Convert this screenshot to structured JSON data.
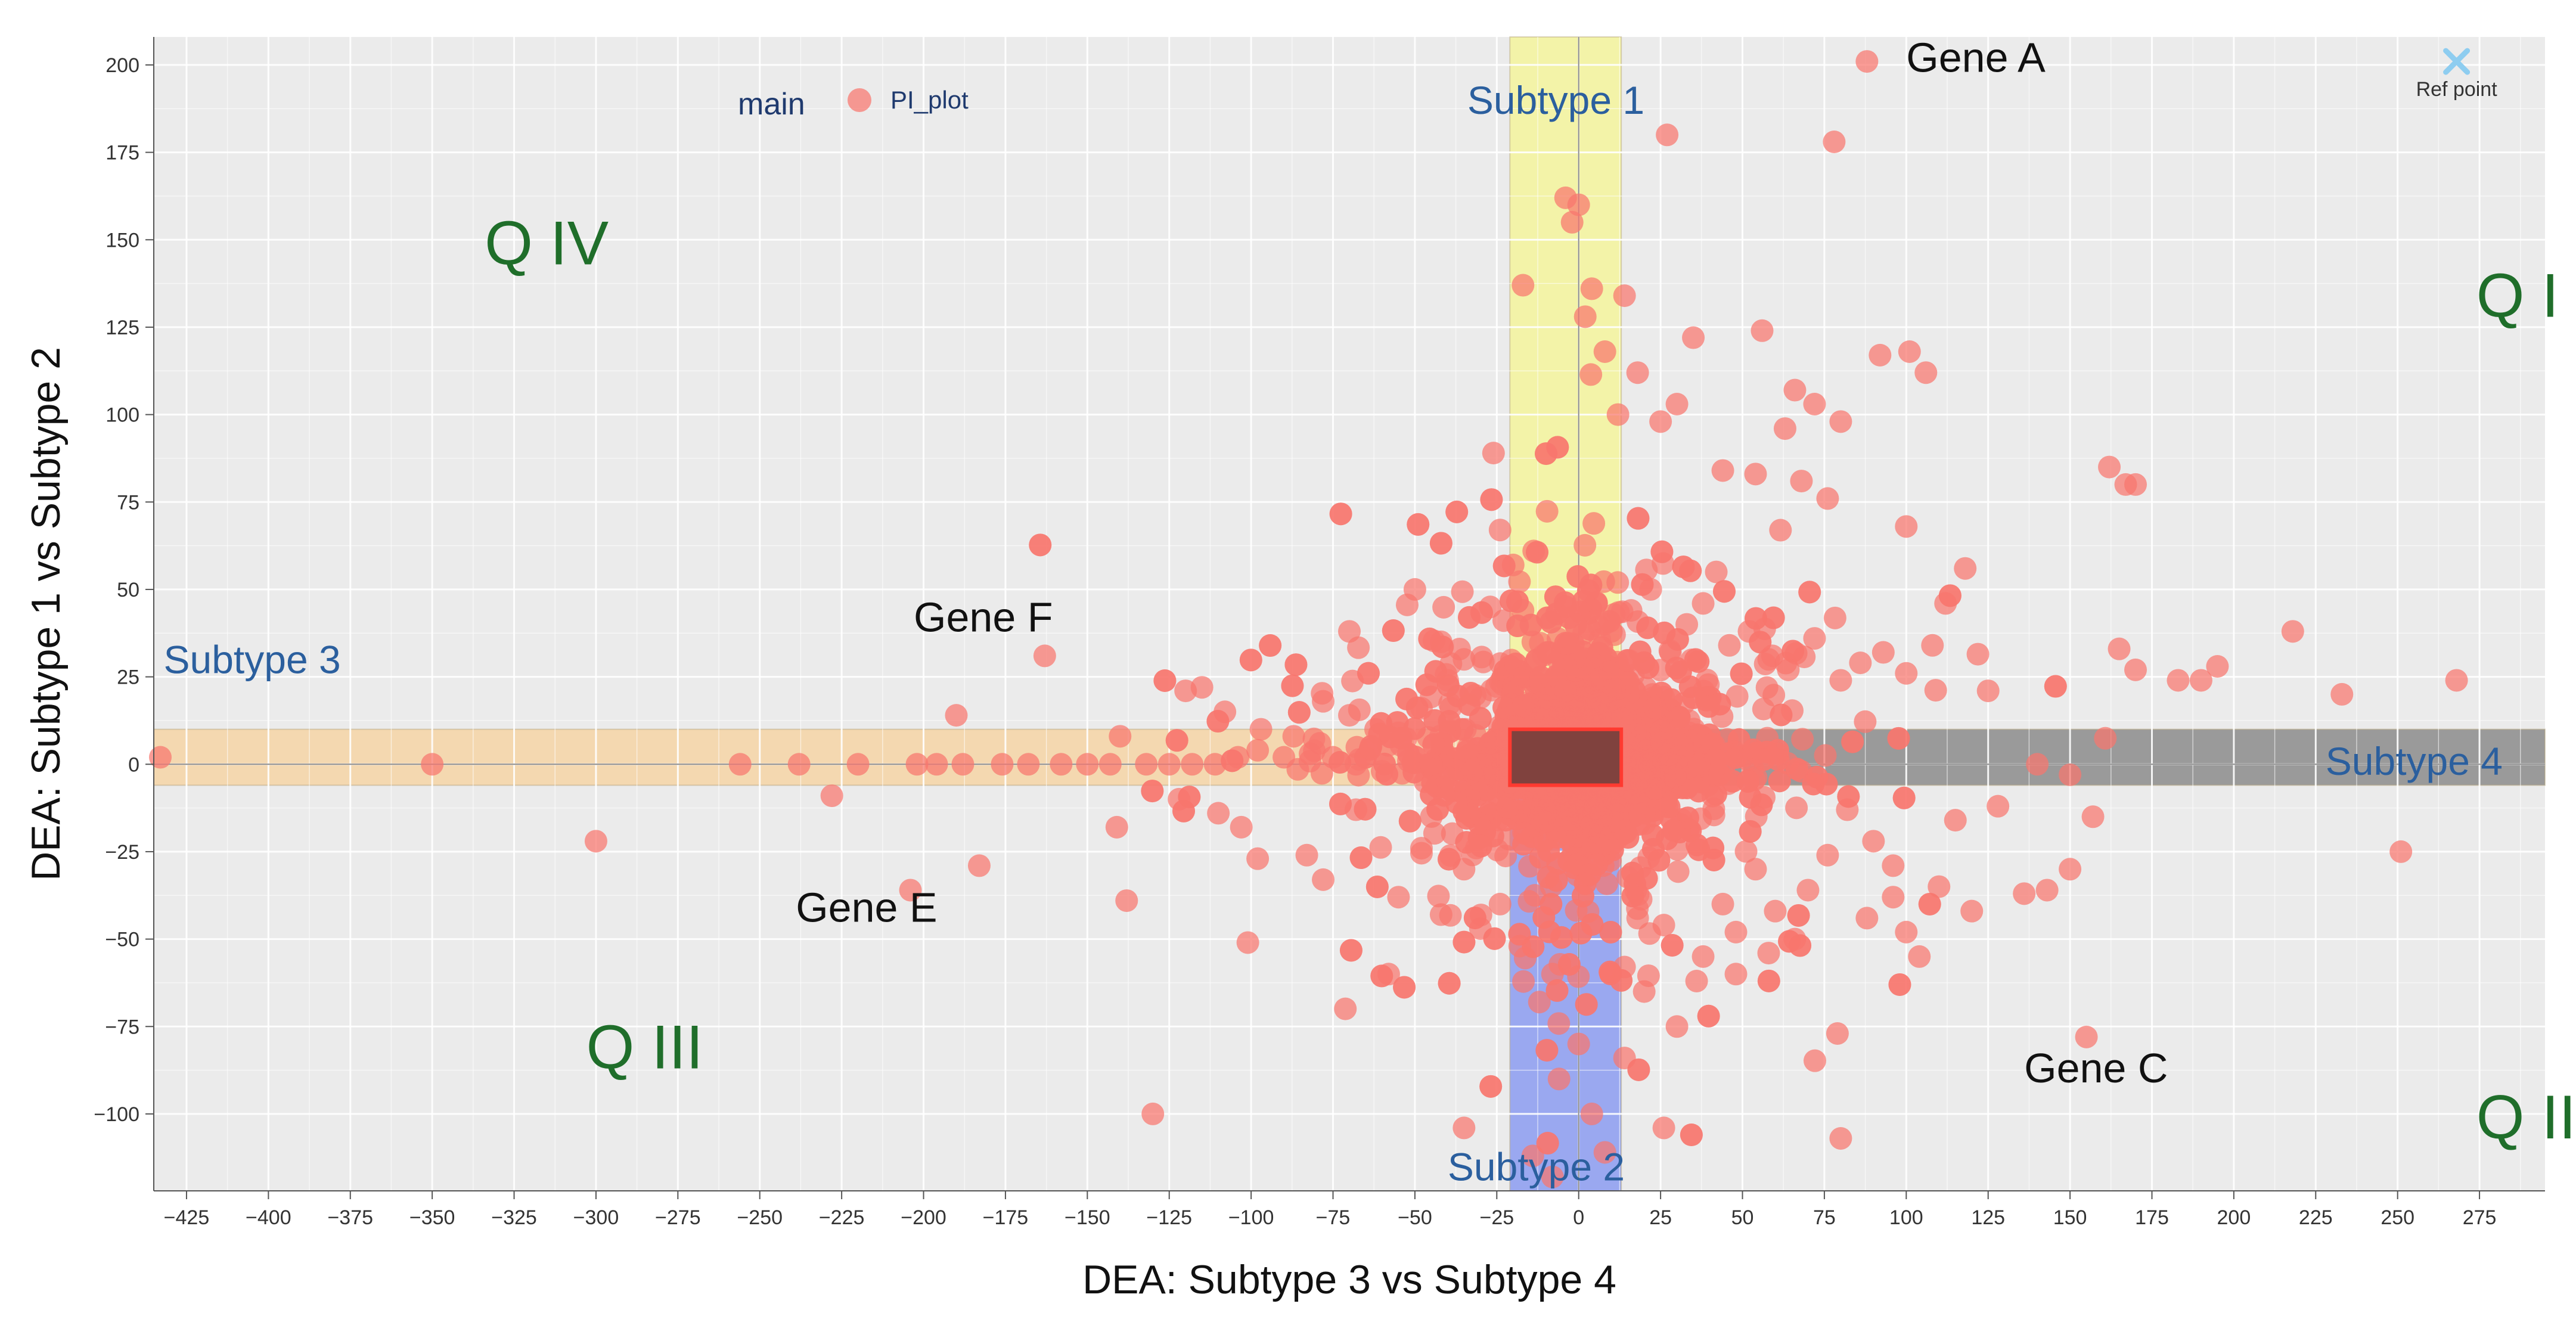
{
  "chart_data": {
    "type": "scatter",
    "title": "",
    "xlabel": "DEA: Subtype 3 vs Subtype 4",
    "ylabel": "DEA: Subtype 1 vs Subtype 2",
    "xlim": [
      -435,
      295
    ],
    "ylim": [
      -122,
      208
    ],
    "xticks": [
      -425,
      -400,
      -375,
      -350,
      -325,
      -300,
      -275,
      -250,
      -225,
      -200,
      -175,
      -150,
      -125,
      -100,
      -75,
      -50,
      -25,
      0,
      25,
      50,
      75,
      100,
      125,
      150,
      175,
      200,
      225,
      250,
      275
    ],
    "yticks": [
      -100,
      -75,
      -50,
      -25,
      0,
      25,
      50,
      75,
      100,
      125,
      150,
      175,
      200
    ],
    "grid": true,
    "legend": {
      "title": "main",
      "placement": "top-left",
      "entries": [
        {
          "label": "PI_plot",
          "color": "#f8766d"
        }
      ]
    },
    "colors": {
      "points": "#f8766d",
      "plot_background": "#ebebeb",
      "subtype1_band": "#f3f3a8",
      "subtype2_band": "#9aa8f0",
      "subtype3_band": "#f4d8b0",
      "subtype4_band": "#9a9a9a",
      "center_box": "#6b3a36",
      "ref_marker": "#8ecdf0"
    },
    "regions": [
      {
        "id": "subtype1",
        "label": "Subtype 1",
        "x": [
          -21,
          13
        ],
        "y": [
          10,
          208
        ]
      },
      {
        "id": "subtype2",
        "label": "Subtype 2",
        "x": [
          -21,
          13
        ],
        "y": [
          -122,
          -6
        ]
      },
      {
        "id": "subtype3",
        "label": "Subtype 3",
        "x": [
          -435,
          -21
        ],
        "y": [
          -6,
          10
        ]
      },
      {
        "id": "subtype4",
        "label": "Subtype 4",
        "x": [
          13,
          295
        ],
        "y": [
          -6,
          10
        ]
      },
      {
        "id": "center",
        "label": "",
        "x": [
          -21,
          13
        ],
        "y": [
          -6,
          10
        ]
      }
    ],
    "quadrant_labels": [
      {
        "label": "Q I",
        "x": 274,
        "y": 128
      },
      {
        "label": "Q II",
        "x": 274,
        "y": -107
      },
      {
        "label": "Q III",
        "x": -303,
        "y": -87
      },
      {
        "label": "Q IV",
        "x": -334,
        "y": 143
      }
    ],
    "region_labels": [
      {
        "label": "Subtype 1",
        "x": -34,
        "y": 186
      },
      {
        "label": "Subtype 2",
        "x": -40,
        "y": -119
      },
      {
        "label": "Subtype 3",
        "x": -432,
        "y": 26
      },
      {
        "label": "Subtype 4",
        "x": 228,
        "y": -3
      }
    ],
    "gene_labels": [
      {
        "label": "Gene A",
        "x": 100,
        "y": 198
      },
      {
        "label": "Gene C",
        "x": 136,
        "y": -91
      },
      {
        "label": "Gene E",
        "x": -239,
        "y": -45
      },
      {
        "label": "Gene F",
        "x": -203,
        "y": 38
      }
    ],
    "reference_point": {
      "label": "Ref point",
      "x": 268,
      "y": 201
    },
    "series": [
      {
        "name": "PI_plot",
        "points": [
          [
            88,
            201
          ],
          [
            27,
            180
          ],
          [
            78,
            178
          ],
          [
            0,
            160
          ],
          [
            -2,
            155
          ],
          [
            -17,
            137
          ],
          [
            4,
            136
          ],
          [
            14,
            134
          ],
          [
            35,
            122
          ],
          [
            56,
            124
          ],
          [
            92,
            117
          ],
          [
            101,
            118
          ],
          [
            106,
            112
          ],
          [
            66,
            107
          ],
          [
            72,
            103
          ],
          [
            80,
            98
          ],
          [
            44,
            84
          ],
          [
            54,
            83
          ],
          [
            63,
            96
          ],
          [
            68,
            81
          ],
          [
            76,
            76
          ],
          [
            100,
            68
          ],
          [
            162,
            85
          ],
          [
            167,
            80
          ],
          [
            170,
            80
          ],
          [
            12,
            100
          ],
          [
            25,
            98
          ],
          [
            -4,
            162
          ],
          [
            2,
            128
          ],
          [
            8,
            118
          ],
          [
            18,
            112
          ],
          [
            30,
            103
          ],
          [
            -26,
            89
          ],
          [
            -24,
            67
          ],
          [
            -20,
            57
          ],
          [
            -17,
            44
          ],
          [
            -27,
            45
          ],
          [
            -14,
            35
          ],
          [
            -9,
            32
          ],
          [
            -5,
            27
          ],
          [
            10,
            38
          ],
          [
            16,
            44
          ],
          [
            22,
            50
          ],
          [
            33,
            40
          ],
          [
            38,
            46
          ],
          [
            42,
            55
          ],
          [
            28,
            32
          ],
          [
            46,
            34
          ],
          [
            52,
            38
          ],
          [
            58,
            30
          ],
          [
            64,
            27
          ],
          [
            72,
            36
          ],
          [
            80,
            24
          ],
          [
            86,
            29
          ],
          [
            93,
            32
          ],
          [
            100,
            26
          ],
          [
            108,
            34
          ],
          [
            112,
            46
          ],
          [
            118,
            56
          ],
          [
            125,
            21
          ],
          [
            140,
            0
          ],
          [
            150,
            -3
          ],
          [
            165,
            33
          ],
          [
            170,
            27
          ],
          [
            183,
            24
          ],
          [
            190,
            24
          ],
          [
            195,
            28
          ],
          [
            218,
            38
          ],
          [
            233,
            20
          ],
          [
            268,
            24
          ],
          [
            -163,
            31
          ],
          [
            -190,
            14
          ],
          [
            -140,
            8
          ],
          [
            -120,
            21
          ],
          [
            -115,
            22
          ],
          [
            -108,
            15
          ],
          [
            -97,
            10
          ],
          [
            -87,
            8
          ],
          [
            -78,
            18
          ],
          [
            -70,
            14
          ],
          [
            -62,
            10
          ],
          [
            -55,
            9
          ],
          [
            -48,
            16
          ],
          [
            -40,
            24
          ],
          [
            -35,
            30
          ],
          [
            -30,
            19
          ],
          [
            -70,
            38
          ],
          [
            -42,
            35
          ],
          [
            -50,
            50
          ],
          [
            -433,
            2
          ],
          [
            -350,
            0
          ],
          [
            -256,
            0
          ],
          [
            -238,
            0
          ],
          [
            -220,
            0
          ],
          [
            -202,
            0
          ],
          [
            -196,
            0
          ],
          [
            -188,
            0
          ],
          [
            -176,
            0
          ],
          [
            -168,
            0
          ],
          [
            -158,
            0
          ],
          [
            -150,
            0
          ],
          [
            -143,
            0
          ],
          [
            -132,
            0
          ],
          [
            -125,
            0
          ],
          [
            -118,
            0
          ],
          [
            -111,
            0
          ],
          [
            -104,
            2
          ],
          [
            -98,
            4
          ],
          [
            -90,
            2
          ],
          [
            -82,
            3
          ],
          [
            -75,
            2
          ],
          [
            -68,
            0
          ],
          [
            -60,
            -2
          ],
          [
            -52,
            1
          ],
          [
            -45,
            0
          ],
          [
            -300,
            -22
          ],
          [
            -228,
            -9
          ],
          [
            -204,
            -36
          ],
          [
            -183,
            -29
          ],
          [
            -141,
            -18
          ],
          [
            -138,
            -39
          ],
          [
            -130,
            -100
          ],
          [
            -122,
            -10
          ],
          [
            -110,
            -14
          ],
          [
            -103,
            -18
          ],
          [
            -101,
            -51
          ],
          [
            -98,
            -27
          ],
          [
            -83,
            -26
          ],
          [
            -78,
            -33
          ],
          [
            -68,
            -13
          ],
          [
            -58,
            -60
          ],
          [
            -55,
            -38
          ],
          [
            -48,
            -24
          ],
          [
            -42,
            -43
          ],
          [
            -35,
            -30
          ],
          [
            -30,
            -47
          ],
          [
            -24,
            -40
          ],
          [
            -18,
            -52
          ],
          [
            -12,
            -68
          ],
          [
            -8,
            -60
          ],
          [
            -6,
            -90
          ],
          [
            0,
            -80
          ],
          [
            4,
            -100
          ],
          [
            8,
            -111
          ],
          [
            -14,
            -112
          ],
          [
            -35,
            -104
          ],
          [
            -8,
            -118
          ],
          [
            26,
            -104
          ],
          [
            14,
            -84
          ],
          [
            30,
            -75
          ],
          [
            20,
            -65
          ],
          [
            38,
            -55
          ],
          [
            44,
            -40
          ],
          [
            48,
            -48
          ],
          [
            54,
            -30
          ],
          [
            60,
            -42
          ],
          [
            66,
            -50
          ],
          [
            70,
            -36
          ],
          [
            76,
            -26
          ],
          [
            79,
            -77
          ],
          [
            80,
            -107
          ],
          [
            82,
            -13
          ],
          [
            90,
            -22
          ],
          [
            96,
            -38
          ],
          [
            100,
            -48
          ],
          [
            104,
            -55
          ],
          [
            110,
            -35
          ],
          [
            115,
            -16
          ],
          [
            120,
            -42
          ],
          [
            128,
            -12
          ],
          [
            136,
            -37
          ],
          [
            143,
            -36
          ],
          [
            150,
            -30
          ],
          [
            157,
            -15
          ],
          [
            155,
            -78
          ],
          [
            251,
            -25
          ],
          [
            96,
            -29
          ],
          [
            88,
            -44
          ],
          [
            58,
            -54
          ],
          [
            48,
            -60
          ],
          [
            36,
            -62
          ],
          [
            26,
            -46
          ],
          [
            14,
            -58
          ],
          [
            18,
            -44
          ]
        ],
        "cloud_center": [
          0,
          2
        ],
        "cloud_spread": [
          16,
          11
        ],
        "cloud_count": 3200
      }
    ]
  }
}
